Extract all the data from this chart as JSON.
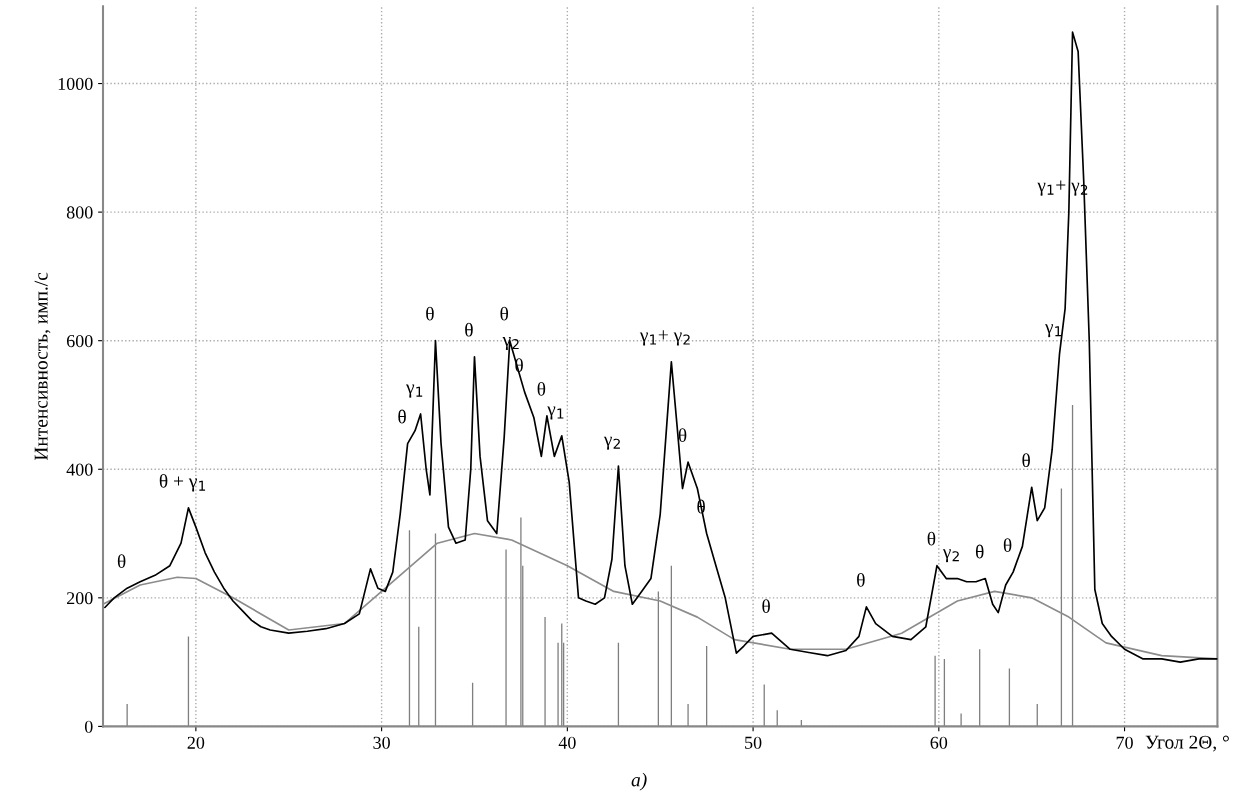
{
  "chart_data": {
    "type": "line",
    "xlabel": "Угол 2Θ, °",
    "ylabel": "Интенсивность, имп./с",
    "xlim": [
      15,
      75
    ],
    "xticks": [
      20,
      30,
      40,
      50,
      60,
      70
    ],
    "ylim": [
      0,
      1120
    ],
    "yticks": [
      0,
      200,
      400,
      600,
      800,
      1000
    ],
    "grid": true,
    "marker": "none",
    "line_style": "solid",
    "series": [
      {
        "type": "bar",
        "color": "#7f7f7f",
        "x": [
          16.3,
          19.6,
          31.5,
          32.0,
          32.9,
          34.9,
          36.7,
          37.5,
          37.6,
          38.8,
          39.5,
          39.7,
          39.8,
          42.75,
          44.9,
          45.6,
          46.5,
          47.5,
          50.6,
          51.3,
          52.6,
          59.8,
          60.3,
          61.2,
          62.2,
          63.8,
          65.3,
          66.6,
          67.2
        ],
        "values": [
          35,
          140,
          305,
          155,
          300,
          68,
          275,
          325,
          250,
          170,
          130,
          160,
          130,
          130,
          210,
          250,
          35,
          125,
          65,
          25,
          10,
          110,
          105,
          20,
          120,
          90,
          35,
          370,
          500
        ]
      },
      {
        "type": "line",
        "color": "#8c8c8c",
        "x": [
          15,
          17,
          19,
          20,
          22,
          25,
          28,
          30,
          33,
          35,
          37,
          40,
          42.5,
          45,
          47,
          49,
          52,
          55,
          58,
          61,
          63,
          65,
          67,
          69,
          72,
          75
        ],
        "values": [
          190,
          220,
          232,
          230,
          200,
          150,
          160,
          210,
          285,
          300,
          290,
          250,
          210,
          195,
          170,
          135,
          120,
          120,
          145,
          195,
          210,
          200,
          170,
          130,
          110,
          105
        ]
      },
      {
        "color": "#000000",
        "x": [
          15.1,
          15.6,
          16.3,
          17.0,
          17.8,
          18.6,
          19.2,
          19.6,
          20.0,
          20.5,
          21.0,
          21.5,
          22.0,
          22.5,
          23.0,
          23.5,
          24.0,
          25.0,
          26.0,
          27.0,
          28.0,
          28.8,
          29.4,
          29.8,
          30.2,
          30.6,
          31.0,
          31.4,
          31.8,
          32.1,
          32.4,
          32.6,
          32.9,
          33.2,
          33.6,
          34.0,
          34.5,
          34.8,
          35.0,
          35.3,
          35.7,
          36.2,
          36.6,
          36.9,
          37.3,
          37.7,
          38.2,
          38.6,
          38.9,
          39.3,
          39.7,
          40.1,
          40.6,
          41.0,
          41.5,
          42.0,
          42.4,
          42.75,
          43.1,
          43.5,
          44.0,
          44.5,
          45.0,
          45.6,
          45.9,
          46.2,
          46.5,
          47.0,
          47.5,
          48.0,
          48.5,
          49.1,
          49.5,
          50.0,
          51.0,
          52.0,
          53.0,
          54.0,
          55.0,
          55.7,
          56.1,
          56.6,
          57.5,
          58.5,
          59.3,
          59.9,
          60.4,
          61.0,
          61.5,
          62.0,
          62.5,
          62.9,
          63.2,
          63.6,
          64.0,
          64.5,
          65.0,
          65.3,
          65.7,
          66.1,
          66.5,
          66.8,
          67.0,
          67.2,
          67.5,
          67.8,
          68.1,
          68.4,
          68.8,
          69.3,
          70.0,
          71.0,
          72.0,
          73.0,
          74.0,
          75.0
        ],
        "values": [
          185,
          200,
          215,
          225,
          235,
          250,
          285,
          340,
          310,
          270,
          240,
          215,
          195,
          180,
          165,
          155,
          150,
          145,
          148,
          152,
          160,
          175,
          245,
          215,
          210,
          240,
          330,
          440,
          460,
          486,
          400,
          360,
          600,
          440,
          310,
          285,
          290,
          400,
          575,
          420,
          320,
          300,
          450,
          600,
          560,
          520,
          480,
          420,
          483,
          420,
          452,
          380,
          200,
          195,
          190,
          200,
          260,
          405,
          250,
          190,
          210,
          230,
          330,
          567,
          470,
          370,
          411,
          370,
          300,
          250,
          200,
          114,
          125,
          140,
          145,
          120,
          115,
          110,
          118,
          140,
          186,
          160,
          140,
          135,
          155,
          250,
          230,
          230,
          225,
          225,
          230,
          190,
          177,
          220,
          240,
          280,
          372,
          320,
          340,
          430,
          580,
          650,
          800,
          1080,
          1050,
          850,
          600,
          213,
          160,
          140,
          120,
          105,
          105,
          100,
          105,
          105
        ]
      }
    ],
    "annotations": [
      {
        "text": "θ",
        "x": 16.3,
        "y": 215
      },
      {
        "text": "θ + γ$_{1}$",
        "x": 19.6,
        "y": 340
      },
      {
        "text": "θ",
        "x": 31.4,
        "y": 440
      },
      {
        "text": "γ$_{1}$",
        "x": 32.1,
        "y": 486
      },
      {
        "text": "θ",
        "x": 32.9,
        "y": 600
      },
      {
        "text": "θ",
        "x": 35.0,
        "y": 575
      },
      {
        "text": "θ",
        "x": 36.9,
        "y": 600
      },
      {
        "text": "γ$_{2}$",
        "x": 37.3,
        "y": 560
      },
      {
        "text": "θ",
        "x": 37.7,
        "y": 520
      },
      {
        "text": "θ",
        "x": 38.9,
        "y": 483
      },
      {
        "text": "γ$_{1}$",
        "x": 39.7,
        "y": 452
      },
      {
        "text": "γ$_{2}$",
        "x": 42.75,
        "y": 405
      },
      {
        "text": "γ$_{1}$+ γ$_{2}$",
        "x": 45.6,
        "y": 567
      },
      {
        "text": "θ",
        "x": 46.5,
        "y": 411
      },
      {
        "text": "θ",
        "x": 47.5,
        "y": 300
      },
      {
        "text": "θ",
        "x": 51.0,
        "y": 145
      },
      {
        "text": "θ",
        "x": 56.1,
        "y": 186
      },
      {
        "text": "γ$_{2}$",
        "x": 61.0,
        "y": 230
      },
      {
        "text": "θ",
        "x": 59.9,
        "y": 250
      },
      {
        "text": "θ",
        "x": 62.5,
        "y": 230
      },
      {
        "text": "θ",
        "x": 64.0,
        "y": 240
      },
      {
        "text": "θ",
        "x": 65.0,
        "y": 372
      },
      {
        "text": "γ$_{1}$",
        "x": 66.5,
        "y": 580
      },
      {
        "text": "γ$_{1}$+ γ$_{2}$",
        "x": 67.0,
        "y": 800
      },
      "а)"
    ]
  }
}
